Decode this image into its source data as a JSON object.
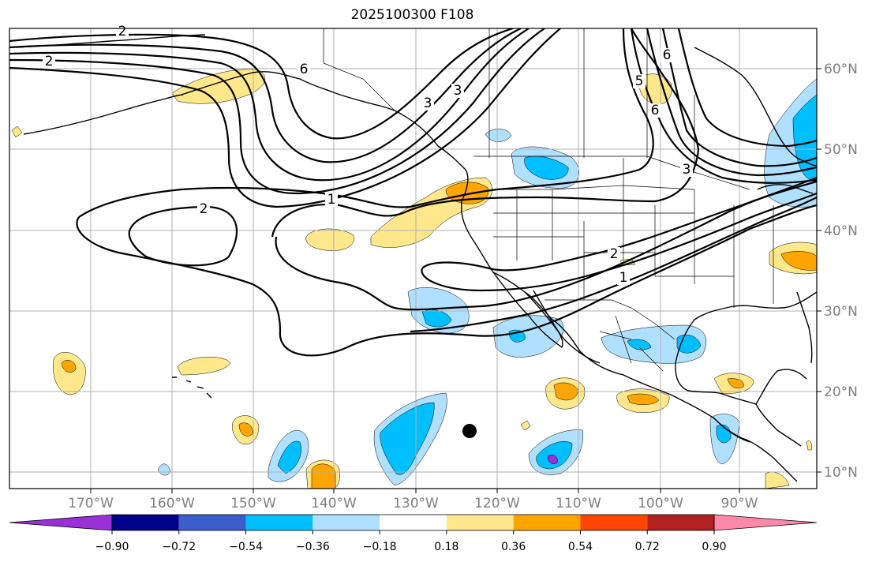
{
  "title": "2025100300 F108",
  "colors": {
    "grid": "#b0b0b0",
    "coast": "#000000",
    "ocean_bg": "#ffffff",
    "axis_label": "#7f7f7f"
  },
  "lon_ticks": [
    "170°W",
    "160°W",
    "150°W",
    "140°W",
    "130°W",
    "120°W",
    "110°W",
    "100°W",
    "90°W"
  ],
  "lat_ticks": [
    "10°N",
    "20°N",
    "30°N",
    "40°N",
    "50°N",
    "60°N"
  ],
  "colorbar": {
    "colors": [
      "#9b30d9",
      "#00008b",
      "#3a5fcd",
      "#00bfff",
      "#b0e0ff",
      "#ffffff",
      "#ffe88c",
      "#ffa500",
      "#ff4500",
      "#b22222",
      "#ff88aa"
    ],
    "labels": [
      "−0.90",
      "−0.72",
      "−0.54",
      "−0.36",
      "−0.18",
      "0.18",
      "0.36",
      "0.54",
      "0.72",
      "0.90"
    ]
  },
  "contour_labels": [
    "2",
    "2",
    "1",
    "2",
    "1",
    "2",
    "3",
    "6",
    "6",
    "5",
    "3",
    "3",
    "6"
  ],
  "marker": {
    "name": "storm-center"
  },
  "chart_data": {
    "type": "heatmap",
    "title": "2025100300 F108",
    "x_range_deg": [
      -180,
      -80
    ],
    "y_range_deg": [
      8,
      65
    ],
    "colorbar_levels": [
      -0.9,
      -0.72,
      -0.54,
      -0.36,
      -0.18,
      0.18,
      0.36,
      0.54,
      0.72,
      0.9
    ],
    "contour_levels_shown": [
      1,
      2,
      3,
      5,
      6
    ]
  }
}
